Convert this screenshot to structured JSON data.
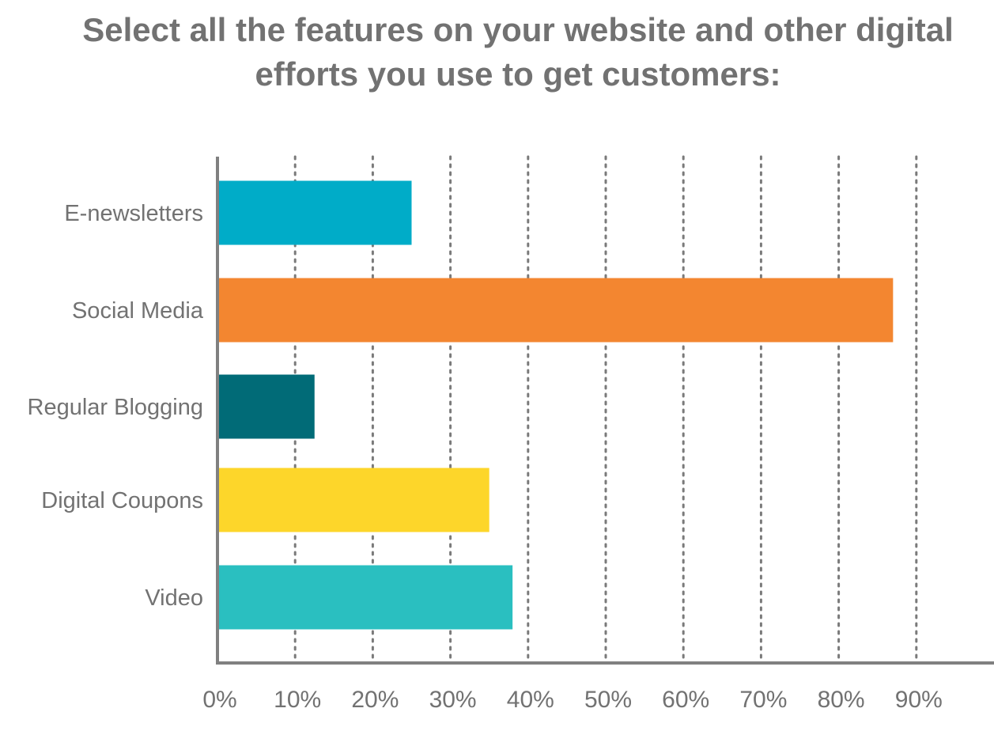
{
  "chart_data": {
    "type": "bar",
    "orientation": "horizontal",
    "title_lines": [
      "Select all the features on your website and other digital",
      "efforts you use to get customers:"
    ],
    "categories": [
      "E-newsletters",
      "Social Media",
      "Regular Blogging",
      "Digital Coupons",
      "Video"
    ],
    "values": [
      25,
      87,
      12.5,
      35,
      38
    ],
    "colors": [
      "#00ACC8",
      "#F38630",
      "#016B77",
      "#FDD62A",
      "#2ABFC0"
    ],
    "xlim": [
      0,
      100
    ],
    "xticks": [
      "0%",
      "10%",
      "20%",
      "30%",
      "40%",
      "50%",
      "60%",
      "70%",
      "80%",
      "90%"
    ],
    "grid": "vertical-dotted",
    "axis_color": "#808080",
    "text_color": "#727272",
    "legend": "none"
  }
}
